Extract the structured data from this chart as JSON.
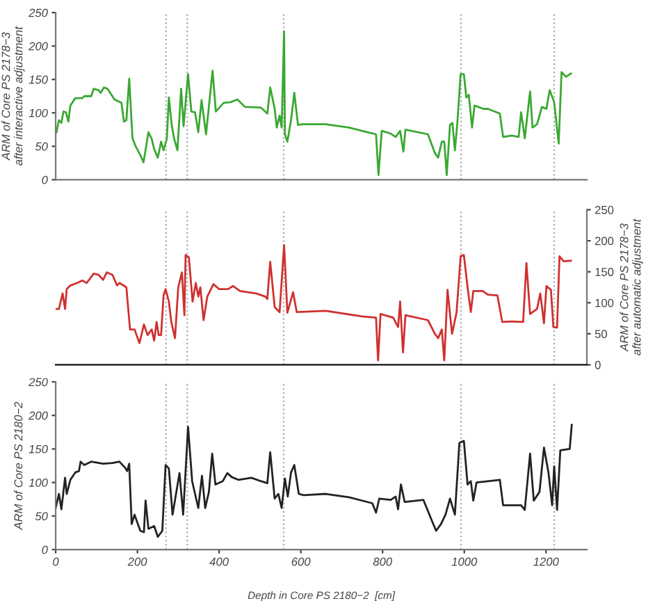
{
  "chart_data": [
    {
      "type": "line",
      "ylabel": "ARM of Core PS 2178−3\nafter interactive adjustment",
      "xlim": [
        0,
        1300
      ],
      "ylim": [
        0,
        250
      ],
      "yticks": [
        0,
        50,
        100,
        150,
        200,
        250
      ],
      "tick_labels": "y",
      "grid": false,
      "legend": false,
      "ref_lines": [
        {
          "axis": "x",
          "value": 270,
          "color": "#aaaaaa",
          "line_style": "dotted"
        },
        {
          "axis": "x",
          "value": 322,
          "color": "#aaaaaa",
          "line_style": "dotted"
        },
        {
          "axis": "x",
          "value": 558,
          "color": "#aaaaaa",
          "line_style": "dotted"
        },
        {
          "axis": "x",
          "value": 992,
          "color": "#aaaaaa",
          "line_style": "dotted"
        },
        {
          "axis": "x",
          "value": 1220,
          "color": "#aaaaaa",
          "line_style": "dotted"
        }
      ],
      "series": [
        {
          "color": "#3aa832",
          "x": [
            2,
            8,
            14,
            19,
            25,
            31,
            36,
            48,
            65,
            70,
            87,
            93,
            105,
            110,
            118,
            127,
            144,
            161,
            167,
            173,
            180,
            188,
            195,
            207,
            215,
            227,
            235,
            241,
            250,
            258,
            264,
            272,
            277,
            284,
            290,
            298,
            307,
            313,
            324,
            332,
            341,
            349,
            357,
            368,
            384,
            392,
            411,
            428,
            445,
            463,
            502,
            518,
            525,
            536,
            541,
            548,
            553,
            559,
            561,
            567,
            576,
            584,
            593,
            604,
            661,
            718,
            763,
            784,
            790,
            798,
            820,
            832,
            843,
            851,
            856,
            911,
            928,
            936,
            945,
            951,
            957,
            965,
            971,
            977,
            983,
            991,
            999,
            1005,
            1011,
            1019,
            1025,
            1047,
            1058,
            1087,
            1095,
            1116,
            1133,
            1139,
            1148,
            1161,
            1167,
            1178,
            1190,
            1201,
            1209,
            1220,
            1231,
            1238,
            1249,
            1261
          ],
          "values": [
            71,
            89,
            85,
            102,
            101,
            87,
            111,
            122,
            122,
            125,
            125,
            136,
            134,
            130,
            138,
            136,
            120,
            115,
            87,
            89,
            151,
            62,
            51,
            37,
            26,
            71,
            61,
            46,
            33,
            57,
            44,
            61,
            123,
            82,
            61,
            44,
            136,
            80,
            158,
            102,
            101,
            71,
            119,
            68,
            163,
            102,
            115,
            116,
            120,
            109,
            108,
            99,
            138,
            106,
            78,
            96,
            78,
            222,
            68,
            57,
            89,
            130,
            82,
            83,
            83,
            78,
            71,
            68,
            7,
            73,
            69,
            64,
            73,
            42,
            75,
            68,
            40,
            33,
            57,
            57,
            7,
            82,
            85,
            44,
            85,
            158,
            158,
            123,
            127,
            78,
            111,
            106,
            106,
            99,
            64,
            66,
            64,
            101,
            62,
            132,
            78,
            83,
            109,
            106,
            134,
            116,
            54,
            161,
            154,
            159
          ]
        }
      ]
    },
    {
      "type": "line",
      "y2label": "ARM of Core PS 2178−3\nafter automatic adjustment",
      "xlim": [
        0,
        1300
      ],
      "y2lim": [
        0,
        250
      ],
      "y2ticks": [
        0,
        50,
        100,
        150,
        200,
        250
      ],
      "tick_labels": "y",
      "grid": false,
      "legend": false,
      "ref_lines": [
        {
          "axis": "x",
          "value": 270,
          "color": "#aaaaaa",
          "line_style": "dotted"
        },
        {
          "axis": "x",
          "value": 322,
          "color": "#aaaaaa",
          "line_style": "dotted"
        },
        {
          "axis": "x",
          "value": 558,
          "color": "#aaaaaa",
          "line_style": "dotted"
        },
        {
          "axis": "x",
          "value": 992,
          "color": "#aaaaaa",
          "line_style": "dotted"
        },
        {
          "axis": "x",
          "value": 1220,
          "color": "#aaaaaa",
          "line_style": "dotted"
        }
      ],
      "series": [
        {
          "color": "#d03030",
          "axis": "y2",
          "x": [
            2,
            8,
            17,
            23,
            27,
            36,
            53,
            65,
            76,
            93,
            105,
            116,
            125,
            139,
            150,
            156,
            173,
            182,
            193,
            205,
            216,
            225,
            235,
            241,
            247,
            252,
            258,
            264,
            269,
            277,
            283,
            292,
            300,
            309,
            315,
            318,
            326,
            335,
            343,
            349,
            354,
            362,
            371,
            386,
            400,
            422,
            434,
            451,
            491,
            513,
            518,
            525,
            536,
            548,
            559,
            567,
            581,
            590,
            661,
            750,
            784,
            789,
            795,
            826,
            838,
            843,
            850,
            856,
            911,
            928,
            936,
            945,
            951,
            959,
            970,
            981,
            991,
            999,
            1008,
            1016,
            1022,
            1045,
            1058,
            1081,
            1093,
            1116,
            1144,
            1152,
            1161,
            1178,
            1186,
            1195,
            1201,
            1212,
            1218,
            1227,
            1233,
            1243,
            1261
          ],
          "values": [
            90,
            90,
            115,
            90,
            122,
            128,
            132,
            136,
            132,
            147,
            145,
            137,
            149,
            145,
            128,
            132,
            125,
            57,
            57,
            35,
            65,
            48,
            57,
            39,
            69,
            48,
            48,
            112,
            122,
            102,
            69,
            43,
            125,
            149,
            80,
            177,
            173,
            102,
            132,
            110,
            125,
            72,
            110,
            130,
            122,
            122,
            127,
            119,
            115,
            110,
            106,
            166,
            93,
            85,
            193,
            84,
            117,
            85,
            87,
            78,
            76,
            7,
            82,
            76,
            61,
            102,
            20,
            80,
            72,
            50,
            43,
            57,
            7,
            121,
            50,
            84,
            175,
            177,
            125,
            85,
            119,
            119,
            113,
            112,
            69,
            70,
            69,
            164,
            82,
            90,
            115,
            67,
            127,
            121,
            61,
            60,
            175,
            167,
            168
          ]
        }
      ]
    },
    {
      "type": "line",
      "ylabel": "ARM of Core PS 2180−2",
      "xlabel": "Depth in Core PS 2180−2  [cm]",
      "xlim": [
        0,
        1300
      ],
      "xticks": [
        0,
        200,
        400,
        600,
        800,
        1000,
        1200
      ],
      "ylim": [
        0,
        250
      ],
      "yticks": [
        0,
        50,
        100,
        150,
        200,
        250
      ],
      "grid": false,
      "legend": false,
      "ref_lines": [
        {
          "axis": "x",
          "value": 270,
          "color": "#aaaaaa",
          "line_style": "dotted"
        },
        {
          "axis": "x",
          "value": 322,
          "color": "#aaaaaa",
          "line_style": "dotted"
        },
        {
          "axis": "x",
          "value": 558,
          "color": "#aaaaaa",
          "line_style": "dotted"
        },
        {
          "axis": "x",
          "value": 992,
          "color": "#aaaaaa",
          "line_style": "dotted"
        },
        {
          "axis": "x",
          "value": 1220,
          "color": "#aaaaaa",
          "line_style": "dotted"
        }
      ],
      "series": [
        {
          "color": "#222222",
          "x": [
            0,
            8,
            14,
            23,
            27,
            36,
            48,
            57,
            61,
            70,
            87,
            116,
            139,
            156,
            170,
            175,
            180,
            186,
            193,
            207,
            216,
            220,
            227,
            241,
            250,
            261,
            269,
            277,
            286,
            303,
            312,
            324,
            334,
            349,
            358,
            366,
            375,
            383,
            391,
            409,
            420,
            431,
            447,
            479,
            502,
            518,
            525,
            536,
            545,
            553,
            561,
            568,
            576,
            584,
            595,
            607,
            661,
            718,
            775,
            784,
            792,
            820,
            832,
            838,
            845,
            854,
            900,
            922,
            931,
            943,
            954,
            965,
            977,
            988,
            999,
            1008,
            1016,
            1022,
            1030,
            1087,
            1095,
            1139,
            1148,
            1161,
            1170,
            1184,
            1195,
            1206,
            1215,
            1220,
            1227,
            1235,
            1258,
            1263
          ],
          "values": [
            62,
            83,
            60,
            107,
            83,
            104,
            115,
            117,
            131,
            126,
            131,
            128,
            129,
            131,
            122,
            117,
            128,
            38,
            52,
            28,
            26,
            73,
            31,
            35,
            19,
            28,
            126,
            121,
            52,
            114,
            52,
            183,
            102,
            62,
            110,
            62,
            86,
            143,
            97,
            102,
            114,
            108,
            104,
            107,
            102,
            99,
            145,
            76,
            83,
            62,
            106,
            79,
            115,
            126,
            83,
            81,
            83,
            78,
            69,
            55,
            76,
            74,
            79,
            60,
            97,
            71,
            74,
            41,
            28,
            38,
            52,
            76,
            52,
            159,
            162,
            97,
            102,
            73,
            100,
            104,
            66,
            66,
            59,
            143,
            73,
            86,
            152,
            115,
            66,
            124,
            59,
            148,
            150,
            186
          ]
        }
      ]
    }
  ]
}
